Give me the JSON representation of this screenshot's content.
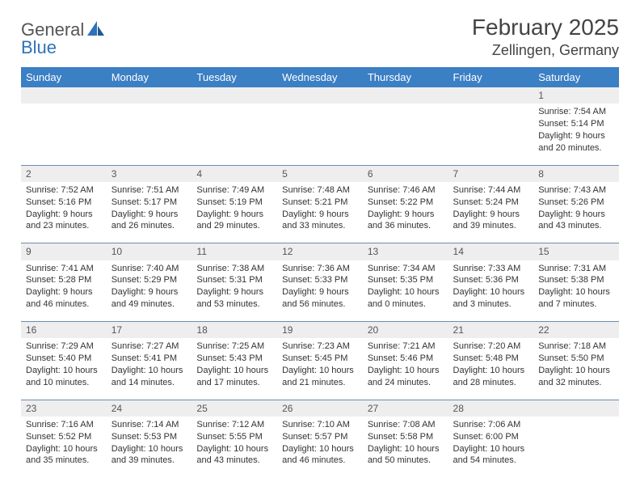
{
  "logo": {
    "text1": "General",
    "text2": "Blue"
  },
  "title": "February 2025",
  "location": "Zellingen, Germany",
  "colors": {
    "header_bg": "#3b7fc4",
    "header_text": "#ffffff",
    "daynum_bg": "#eeeeee",
    "border": "#6c8db1",
    "text": "#333333",
    "logo_gray": "#555555",
    "logo_blue": "#2f72b8"
  },
  "typography": {
    "title_fontsize": 28,
    "location_fontsize": 18,
    "header_fontsize": 13,
    "cell_fontsize": 11
  },
  "weekdays": [
    "Sunday",
    "Monday",
    "Tuesday",
    "Wednesday",
    "Thursday",
    "Friday",
    "Saturday"
  ],
  "weeks": [
    [
      null,
      null,
      null,
      null,
      null,
      null,
      {
        "n": "1",
        "sr": "7:54 AM",
        "ss": "5:14 PM",
        "dl": "9 hours and 20 minutes."
      }
    ],
    [
      {
        "n": "2",
        "sr": "7:52 AM",
        "ss": "5:16 PM",
        "dl": "9 hours and 23 minutes."
      },
      {
        "n": "3",
        "sr": "7:51 AM",
        "ss": "5:17 PM",
        "dl": "9 hours and 26 minutes."
      },
      {
        "n": "4",
        "sr": "7:49 AM",
        "ss": "5:19 PM",
        "dl": "9 hours and 29 minutes."
      },
      {
        "n": "5",
        "sr": "7:48 AM",
        "ss": "5:21 PM",
        "dl": "9 hours and 33 minutes."
      },
      {
        "n": "6",
        "sr": "7:46 AM",
        "ss": "5:22 PM",
        "dl": "9 hours and 36 minutes."
      },
      {
        "n": "7",
        "sr": "7:44 AM",
        "ss": "5:24 PM",
        "dl": "9 hours and 39 minutes."
      },
      {
        "n": "8",
        "sr": "7:43 AM",
        "ss": "5:26 PM",
        "dl": "9 hours and 43 minutes."
      }
    ],
    [
      {
        "n": "9",
        "sr": "7:41 AM",
        "ss": "5:28 PM",
        "dl": "9 hours and 46 minutes."
      },
      {
        "n": "10",
        "sr": "7:40 AM",
        "ss": "5:29 PM",
        "dl": "9 hours and 49 minutes."
      },
      {
        "n": "11",
        "sr": "7:38 AM",
        "ss": "5:31 PM",
        "dl": "9 hours and 53 minutes."
      },
      {
        "n": "12",
        "sr": "7:36 AM",
        "ss": "5:33 PM",
        "dl": "9 hours and 56 minutes."
      },
      {
        "n": "13",
        "sr": "7:34 AM",
        "ss": "5:35 PM",
        "dl": "10 hours and 0 minutes."
      },
      {
        "n": "14",
        "sr": "7:33 AM",
        "ss": "5:36 PM",
        "dl": "10 hours and 3 minutes."
      },
      {
        "n": "15",
        "sr": "7:31 AM",
        "ss": "5:38 PM",
        "dl": "10 hours and 7 minutes."
      }
    ],
    [
      {
        "n": "16",
        "sr": "7:29 AM",
        "ss": "5:40 PM",
        "dl": "10 hours and 10 minutes."
      },
      {
        "n": "17",
        "sr": "7:27 AM",
        "ss": "5:41 PM",
        "dl": "10 hours and 14 minutes."
      },
      {
        "n": "18",
        "sr": "7:25 AM",
        "ss": "5:43 PM",
        "dl": "10 hours and 17 minutes."
      },
      {
        "n": "19",
        "sr": "7:23 AM",
        "ss": "5:45 PM",
        "dl": "10 hours and 21 minutes."
      },
      {
        "n": "20",
        "sr": "7:21 AM",
        "ss": "5:46 PM",
        "dl": "10 hours and 24 minutes."
      },
      {
        "n": "21",
        "sr": "7:20 AM",
        "ss": "5:48 PM",
        "dl": "10 hours and 28 minutes."
      },
      {
        "n": "22",
        "sr": "7:18 AM",
        "ss": "5:50 PM",
        "dl": "10 hours and 32 minutes."
      }
    ],
    [
      {
        "n": "23",
        "sr": "7:16 AM",
        "ss": "5:52 PM",
        "dl": "10 hours and 35 minutes."
      },
      {
        "n": "24",
        "sr": "7:14 AM",
        "ss": "5:53 PM",
        "dl": "10 hours and 39 minutes."
      },
      {
        "n": "25",
        "sr": "7:12 AM",
        "ss": "5:55 PM",
        "dl": "10 hours and 43 minutes."
      },
      {
        "n": "26",
        "sr": "7:10 AM",
        "ss": "5:57 PM",
        "dl": "10 hours and 46 minutes."
      },
      {
        "n": "27",
        "sr": "7:08 AM",
        "ss": "5:58 PM",
        "dl": "10 hours and 50 minutes."
      },
      {
        "n": "28",
        "sr": "7:06 AM",
        "ss": "6:00 PM",
        "dl": "10 hours and 54 minutes."
      },
      null
    ]
  ],
  "labels": {
    "sunrise": "Sunrise:",
    "sunset": "Sunset:",
    "daylight": "Daylight:"
  }
}
